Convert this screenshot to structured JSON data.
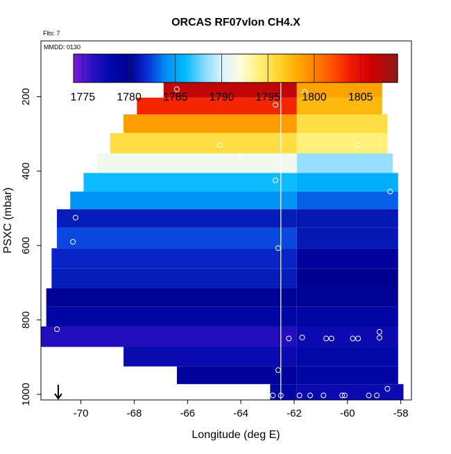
{
  "chart_data": {
    "type": "heatmap",
    "title": "ORCAS RF07vlon CH4.X",
    "annotations": {
      "flts": "Flts: 7",
      "mmdd": "MMDD: 0130"
    },
    "xlabel": "Longitude (deg E)",
    "ylabel": "PSXC (mbar)",
    "xlim": [
      -71.5,
      -57.6
    ],
    "ylim": [
      1015,
      50
    ],
    "x_ticks": [
      -70,
      -68,
      -66,
      -64,
      -62,
      -60,
      -58
    ],
    "y_ticks": [
      200,
      400,
      600,
      800,
      1000
    ],
    "colorbar": {
      "min": 1774,
      "max": 1809,
      "ticks": [
        1775,
        1780,
        1785,
        1790,
        1795,
        1800,
        1805
      ],
      "stops": [
        {
          "v": 1774,
          "c": "#7d1fd6"
        },
        {
          "v": 1776,
          "c": "#2b10c4"
        },
        {
          "v": 1778,
          "c": "#0008a8"
        },
        {
          "v": 1780,
          "c": "#00008f"
        },
        {
          "v": 1782,
          "c": "#0a30d6"
        },
        {
          "v": 1784,
          "c": "#0090f5"
        },
        {
          "v": 1786,
          "c": "#00b8ff"
        },
        {
          "v": 1788,
          "c": "#7fd8ff"
        },
        {
          "v": 1790,
          "c": "#d9f2ff"
        },
        {
          "v": 1792,
          "c": "#fffde0"
        },
        {
          "v": 1794,
          "c": "#fff07a"
        },
        {
          "v": 1796,
          "c": "#ffd830"
        },
        {
          "v": 1798,
          "c": "#ffae00"
        },
        {
          "v": 1800,
          "c": "#ff8200"
        },
        {
          "v": 1802,
          "c": "#ff5000"
        },
        {
          "v": 1804,
          "c": "#f01800"
        },
        {
          "v": 1806,
          "c": "#d20000"
        },
        {
          "v": 1809,
          "c": "#901818"
        }
      ]
    },
    "marker_longitude": -62.5,
    "arrow_longitude": -70.85,
    "rows": [
      {
        "p": 180,
        "x0": -66.9,
        "x1": -61.9,
        "v": 1806.8,
        "x1b": -58.7,
        "v2": 1798.5
      },
      {
        "p": 225,
        "x0": -67.9,
        "x1": -61.9,
        "v": 1803.5,
        "x1b": -58.7,
        "v2": 1797.5
      },
      {
        "p": 270,
        "x0": -68.4,
        "x1": -61.9,
        "v": 1798.8,
        "x1b": -58.5,
        "v2": 1795.5
      },
      {
        "p": 325,
        "x0": -68.9,
        "x1": -61.9,
        "v": 1795.5,
        "x1b": -58.5,
        "v2": 1794.0
      },
      {
        "p": 380,
        "x0": -69.4,
        "x1": -61.9,
        "v": 1791.2,
        "x1b": -58.3,
        "v2": 1788.5
      },
      {
        "p": 430,
        "x0": -69.9,
        "x1": -61.9,
        "v": 1786.2,
        "x1b": -58.1,
        "v2": 1785.5
      },
      {
        "p": 480,
        "x0": -70.4,
        "x1": -61.9,
        "v": 1784.2,
        "x1b": -58.1,
        "v2": 1783.0
      },
      {
        "p": 525,
        "x0": -70.9,
        "x1": -61.9,
        "v": 1781.2,
        "x1b": -58.1,
        "v2": 1781.0
      },
      {
        "p": 580,
        "x0": -70.9,
        "x1": -61.9,
        "v": 1782.5,
        "x1b": -58.1,
        "v2": 1781.0
      },
      {
        "p": 635,
        "x0": -71.1,
        "x1": -61.9,
        "v": 1781.5,
        "x1b": -58.1,
        "v2": 1779.0
      },
      {
        "p": 690,
        "x0": -71.1,
        "x1": -61.9,
        "v": 1781.2,
        "x1b": -58.1,
        "v2": 1780.0
      },
      {
        "p": 740,
        "x0": -71.3,
        "x1": -61.9,
        "v": 1779.5,
        "x1b": -58.1,
        "v2": 1779.5
      },
      {
        "p": 790,
        "x0": -71.3,
        "x1": -61.9,
        "v": 1778.5,
        "x1b": -58.1,
        "v2": 1778.5
      },
      {
        "p": 845,
        "x0": -71.5,
        "x1": -61.9,
        "v": 1776.5,
        "x1b": -58.1,
        "v2": 1777.5
      },
      {
        "p": 900,
        "x0": -68.4,
        "x1": -61.9,
        "v": 1777.5,
        "x1b": -58.1,
        "v2": 1778.0
      },
      {
        "p": 950,
        "x0": -66.4,
        "x1": -61.9,
        "v": 1779.0,
        "x1b": -58.1,
        "v2": 1778.5
      },
      {
        "p": 995,
        "x0": -62.9,
        "x1": -61.9,
        "v": 1778.5,
        "x1b": -57.9,
        "v2": 1777.5
      }
    ],
    "points": [
      {
        "lon": -66.4,
        "p": 180
      },
      {
        "lon": -61.6,
        "p": 187
      },
      {
        "lon": -62.7,
        "p": 222
      },
      {
        "lon": -64.8,
        "p": 330
      },
      {
        "lon": -64.0,
        "p": 362
      },
      {
        "lon": -59.6,
        "p": 330
      },
      {
        "lon": -62.7,
        "p": 425
      },
      {
        "lon": -58.4,
        "p": 455
      },
      {
        "lon": -70.2,
        "p": 525
      },
      {
        "lon": -70.3,
        "p": 590
      },
      {
        "lon": -62.6,
        "p": 607
      },
      {
        "lon": -70.9,
        "p": 825
      },
      {
        "lon": -62.2,
        "p": 850
      },
      {
        "lon": -61.7,
        "p": 847
      },
      {
        "lon": -60.8,
        "p": 850
      },
      {
        "lon": -60.6,
        "p": 850
      },
      {
        "lon": -59.8,
        "p": 850
      },
      {
        "lon": -59.6,
        "p": 850
      },
      {
        "lon": -58.8,
        "p": 832
      },
      {
        "lon": -58.8,
        "p": 848
      },
      {
        "lon": -62.6,
        "p": 935
      },
      {
        "lon": -58.5,
        "p": 985
      },
      {
        "lon": -62.8,
        "p": 1003
      },
      {
        "lon": -62.5,
        "p": 1003
      },
      {
        "lon": -61.8,
        "p": 1003
      },
      {
        "lon": -61.4,
        "p": 1003
      },
      {
        "lon": -60.9,
        "p": 1003
      },
      {
        "lon": -60.2,
        "p": 1003
      },
      {
        "lon": -60.1,
        "p": 1003
      },
      {
        "lon": -59.2,
        "p": 1003
      },
      {
        "lon": -58.9,
        "p": 1003
      }
    ]
  }
}
